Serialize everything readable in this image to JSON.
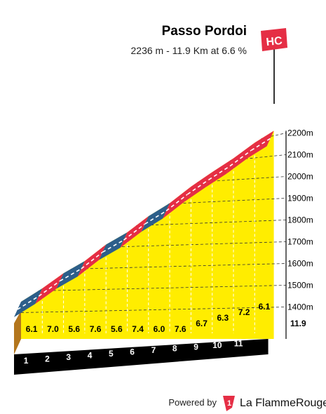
{
  "header": {
    "title": "Passo Pordoi",
    "subtitle": "2236 m - 11.9 Km at 6.6 %",
    "category": "HC"
  },
  "chart_data": {
    "type": "area",
    "title": "Passo Pordoi",
    "summary": "2236 m - 11.9 Km at 6.6 %",
    "category": "HC",
    "x_unit": "km",
    "y_unit": "m",
    "km_ticks": [
      "1",
      "2",
      "3",
      "4",
      "5",
      "6",
      "7",
      "8",
      "9",
      "10",
      "11"
    ],
    "end_label": "11.9",
    "segments": [
      {
        "km_start": 0,
        "km_end": 1,
        "grade": 6.1,
        "grade_label": "6.1",
        "color": "#2d5f8a"
      },
      {
        "km_start": 1,
        "km_end": 2,
        "grade": 7.0,
        "grade_label": "7.0",
        "color": "#e52e45"
      },
      {
        "km_start": 2,
        "km_end": 3,
        "grade": 5.6,
        "grade_label": "5.6",
        "color": "#2d5f8a"
      },
      {
        "km_start": 3,
        "km_end": 4,
        "grade": 7.6,
        "grade_label": "7.6",
        "color": "#e52e45"
      },
      {
        "km_start": 4,
        "km_end": 5,
        "grade": 5.6,
        "grade_label": "5.6",
        "color": "#2d5f8a"
      },
      {
        "km_start": 5,
        "km_end": 6,
        "grade": 7.4,
        "grade_label": "7.4",
        "color": "#e52e45"
      },
      {
        "km_start": 6,
        "km_end": 7,
        "grade": 6.0,
        "grade_label": "6.0",
        "color": "#2d5f8a"
      },
      {
        "km_start": 7,
        "km_end": 8,
        "grade": 7.6,
        "grade_label": "7.6",
        "color": "#e52e45"
      },
      {
        "km_start": 8,
        "km_end": 9,
        "grade": 6.7,
        "grade_label": "6.7",
        "color": "#e52e45"
      },
      {
        "km_start": 9,
        "km_end": 10,
        "grade": 6.3,
        "grade_label": "6.3",
        "color": "#e52e45"
      },
      {
        "km_start": 10,
        "km_end": 11,
        "grade": 7.2,
        "grade_label": "7.2",
        "color": "#e52e45"
      },
      {
        "km_start": 11,
        "km_end": 11.9,
        "grade": 6.1,
        "grade_label": "6.1",
        "color": "#e52e45"
      }
    ],
    "y_ticks": [
      1400,
      1500,
      1600,
      1700,
      1800,
      1900,
      2000,
      2100,
      2200
    ],
    "y_tick_labels": [
      "1400m",
      "1500m",
      "1600m",
      "1700m",
      "1800m",
      "1900m",
      "2000m",
      "2100m",
      "2200m"
    ],
    "ylim": [
      1350,
      2236
    ],
    "grid": true,
    "colors": {
      "fill": "#ffed00",
      "base_front": "#b3761d",
      "km_band": "#000000",
      "hard": "#e52e45",
      "moderate": "#2d5f8a"
    }
  },
  "footer": {
    "powered_by": "Powered by",
    "brand_part1": "La Flamme",
    "brand_part2": "Rouge",
    "brand_color": "#e52e45"
  }
}
